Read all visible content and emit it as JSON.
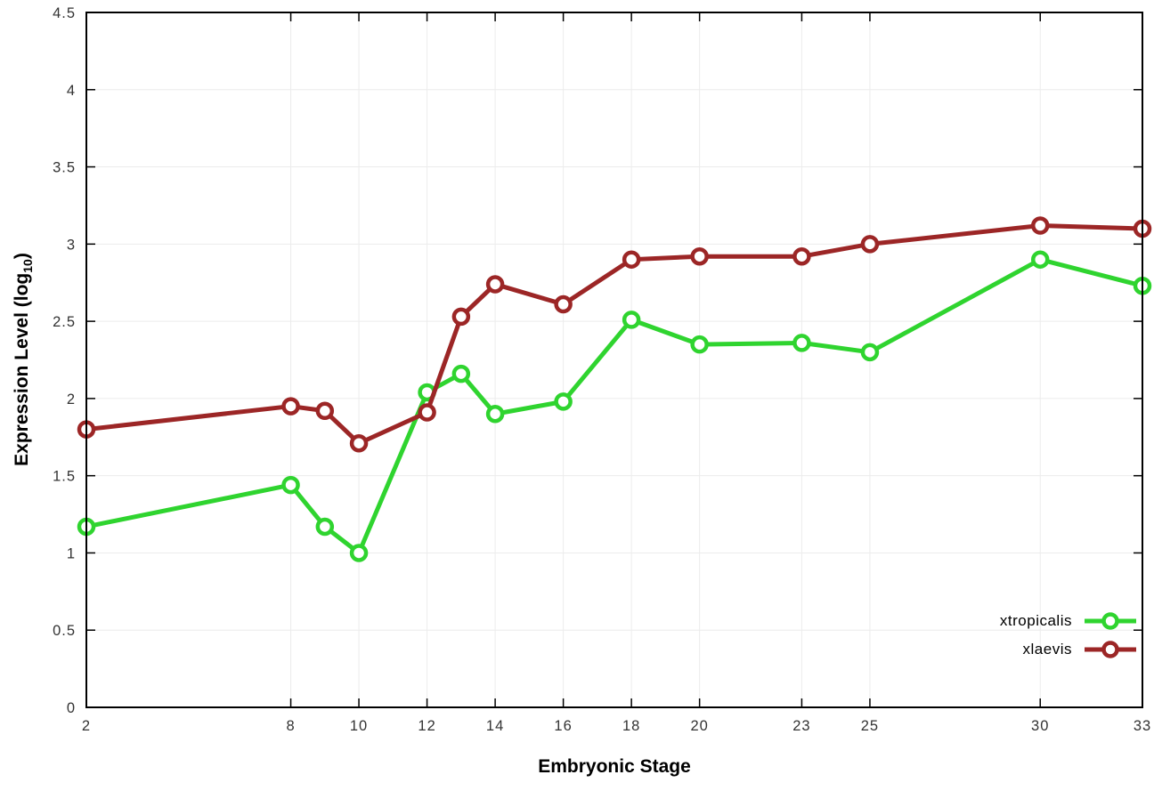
{
  "chart_data": {
    "type": "line",
    "title": "",
    "xlabel": "Embryonic Stage",
    "ylabel_parts": [
      "Expression Level (log",
      "10",
      ")"
    ],
    "xlim": [
      2,
      33
    ],
    "ylim": [
      0,
      4.5
    ],
    "x_ticks": [
      2,
      8,
      10,
      12,
      14,
      16,
      18,
      20,
      23,
      25,
      30,
      33
    ],
    "y_ticks": [
      0,
      0.5,
      1,
      1.5,
      2,
      2.5,
      3,
      3.5,
      4,
      4.5
    ],
    "y_tick_labels": [
      "0",
      "0.5",
      "1",
      "1.5",
      "2",
      "2.5",
      "3",
      "3.5",
      "4",
      "4.5"
    ],
    "grid": true,
    "legend_position": "bottom-right",
    "x": [
      2,
      8,
      9,
      10,
      12,
      13,
      14,
      16,
      18,
      20,
      23,
      25,
      30,
      33
    ],
    "series": [
      {
        "name": "xtropicalis",
        "color": "#2fd42f",
        "values": [
          1.17,
          1.44,
          1.17,
          1.0,
          2.04,
          2.16,
          1.9,
          1.98,
          2.51,
          2.35,
          2.36,
          2.3,
          2.9,
          2.73
        ]
      },
      {
        "name": "xlaevis",
        "color": "#9c2626",
        "values": [
          1.8,
          1.95,
          1.92,
          1.71,
          1.91,
          2.53,
          2.74,
          2.61,
          2.9,
          2.92,
          2.92,
          3.0,
          3.12,
          3.1
        ]
      }
    ],
    "colors": {
      "border": "#000000",
      "grid": "#ececec",
      "tick_text": "#333333"
    }
  }
}
